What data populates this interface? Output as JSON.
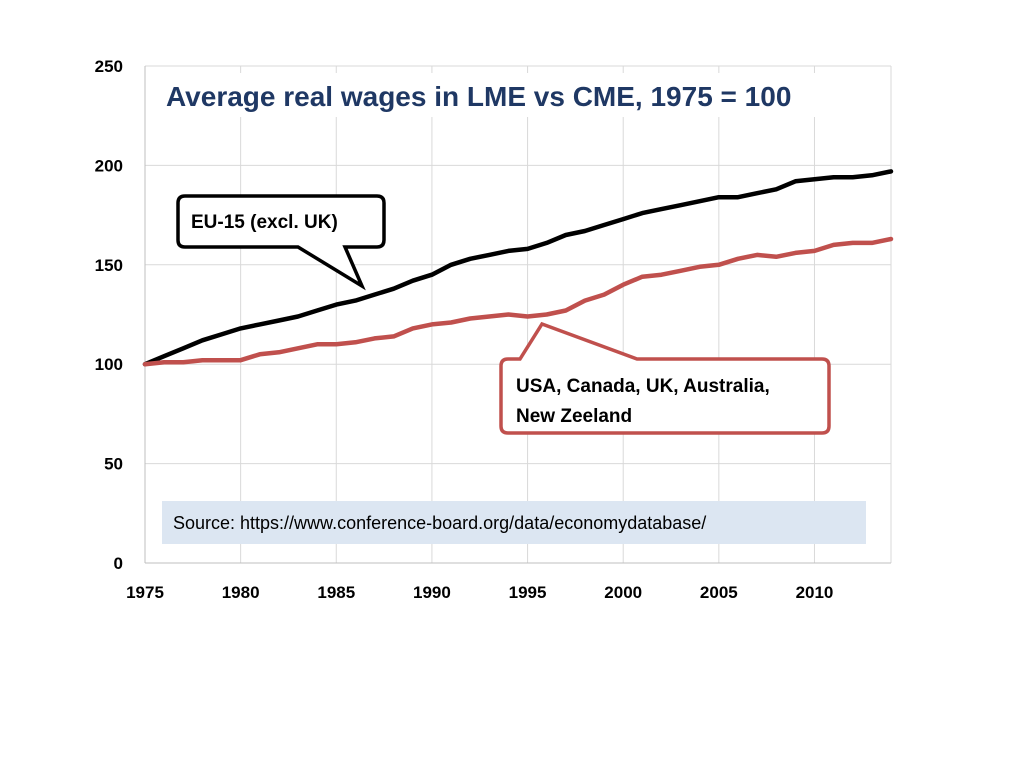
{
  "chart_data": {
    "type": "line",
    "title": "Average real wages in LME vs CME, 1975 = 100",
    "xlabel": "",
    "ylabel": "",
    "xlim": [
      1975,
      2014
    ],
    "ylim": [
      0,
      250
    ],
    "grid": true,
    "x_ticks": [
      "1975",
      "1980",
      "1985",
      "1990",
      "1995",
      "2000",
      "2005",
      "2010"
    ],
    "y_ticks": [
      "0",
      "50",
      "100",
      "150",
      "200",
      "250"
    ],
    "x": [
      1975,
      1976,
      1977,
      1978,
      1979,
      1980,
      1981,
      1982,
      1983,
      1984,
      1985,
      1986,
      1987,
      1988,
      1989,
      1990,
      1991,
      1992,
      1993,
      1994,
      1995,
      1996,
      1997,
      1998,
      1999,
      2000,
      2001,
      2002,
      2003,
      2004,
      2005,
      2006,
      2007,
      2008,
      2009,
      2010,
      2011,
      2012,
      2013,
      2014
    ],
    "series": [
      {
        "color": "#000000",
        "values": [
          100,
          104,
          108,
          112,
          115,
          118,
          120,
          122,
          124,
          127,
          130,
          132,
          135,
          138,
          142,
          145,
          150,
          153,
          155,
          157,
          158,
          161,
          165,
          167,
          170,
          173,
          176,
          178,
          180,
          182,
          184,
          184,
          186,
          188,
          192,
          193,
          194,
          194,
          195,
          197
        ]
      },
      {
        "color": "#c0504d",
        "values": [
          100,
          101,
          101,
          102,
          102,
          102,
          105,
          106,
          108,
          110,
          110,
          111,
          113,
          114,
          118,
          120,
          121,
          123,
          124,
          125,
          124,
          125,
          127,
          132,
          135,
          140,
          144,
          145,
          147,
          149,
          150,
          153,
          155,
          154,
          156,
          157,
          160,
          161,
          161,
          163
        ]
      }
    ],
    "annotations": [
      {
        "text": "EU-15 (excl. UK)",
        "color": "#000000"
      },
      {
        "lines": [
          "USA, Canada, UK, Australia,",
          "New Zeeland"
        ],
        "color": "#c0504d"
      }
    ],
    "source": "Source: https://www.conference-board.org/data/economydatabase/",
    "title_color": "#1f3864",
    "source_box_color": "#dce6f2",
    "grid_color": "#d9d9d9"
  }
}
